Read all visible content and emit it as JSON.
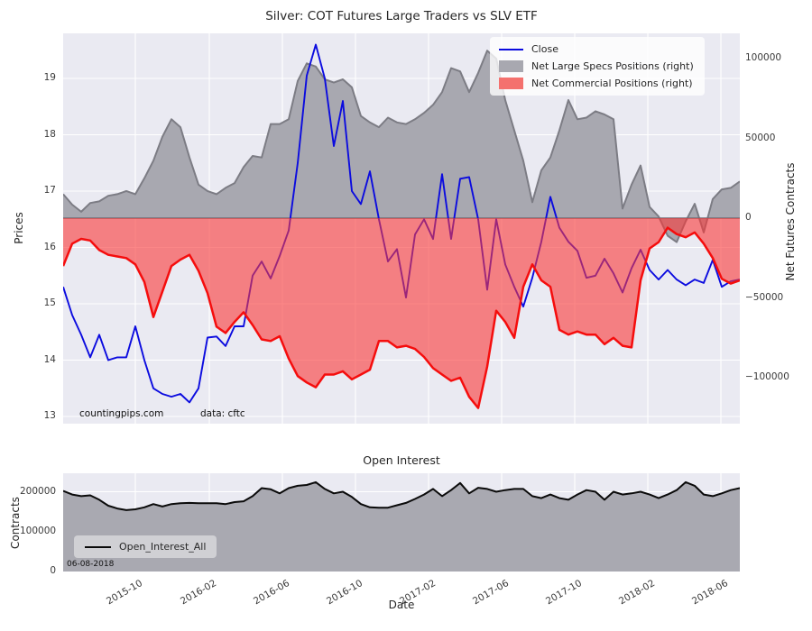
{
  "title": "Silver: COT Futures Large Traders vs SLV ETF",
  "chart_data": [
    {
      "type": "line+area",
      "title": "Silver: COT Futures Large Traders vs SLV ETF",
      "x_start": "2015-06",
      "x_end": "2018-06",
      "x_tick_labels": [
        "2015-10",
        "2016-02",
        "2016-06",
        "2016-10",
        "2017-02",
        "2017-06",
        "2017-10",
        "2018-02",
        "2018-06"
      ],
      "left_axis": {
        "label": "Prices",
        "tick_labels": [
          "19",
          "18",
          "17",
          "16",
          "15",
          "14",
          "13"
        ],
        "tick_values": [
          19,
          18,
          17,
          16,
          15,
          14,
          13
        ],
        "range": [
          12.9,
          19.8
        ]
      },
      "right_axis": {
        "label": "Net Futures Contracts",
        "tick_labels": [
          "100000",
          "50000",
          "0",
          "−50000",
          "−100000"
        ],
        "tick_values_thousands": [
          100,
          50,
          0,
          -50,
          -100
        ],
        "range_thousands": [
          -130,
          116
        ]
      },
      "grid": true,
      "legend_position": "upper right",
      "series": [
        {
          "name": "Close",
          "kind": "line",
          "axis": "left",
          "color": "#0b0bdf",
          "values": [
            15.3,
            14.8,
            14.45,
            14.05,
            14.45,
            14.0,
            14.05,
            14.05,
            14.6,
            14.0,
            13.5,
            13.4,
            13.35,
            13.4,
            13.25,
            13.5,
            14.4,
            14.42,
            14.25,
            14.6,
            14.6,
            15.5,
            15.75,
            15.45,
            15.85,
            16.3,
            17.5,
            19.05,
            19.6,
            19.0,
            17.8,
            18.6,
            17.0,
            16.77,
            17.35,
            16.5,
            15.75,
            15.97,
            15.11,
            16.23,
            16.5,
            16.15,
            17.3,
            16.15,
            17.22,
            17.25,
            16.5,
            15.25,
            16.5,
            15.7,
            15.3,
            14.95,
            15.46,
            16.1,
            16.9,
            16.35,
            16.1,
            15.94,
            15.46,
            15.5,
            15.8,
            15.54,
            15.2,
            15.63,
            15.96,
            15.6,
            15.43,
            15.6,
            15.43,
            15.33,
            15.43,
            15.37,
            15.78,
            15.3,
            15.4,
            15.43
          ]
        },
        {
          "name": "Net Large Specs Positions (right)",
          "kind": "area",
          "axis": "right",
          "fill": "#a8a8b0",
          "edge": "#7c7c84",
          "values_thousands": [
            15,
            8.5,
            4,
            9.5,
            10.5,
            14,
            15,
            17,
            15,
            25,
            36,
            51,
            62,
            57,
            38,
            21,
            17,
            15,
            19,
            22,
            32,
            39,
            38,
            59,
            59,
            62,
            86,
            97,
            95,
            87,
            85,
            87,
            82,
            64,
            60,
            57,
            63,
            60,
            59,
            62,
            66,
            71,
            79,
            94,
            92,
            79,
            91,
            105,
            100,
            74,
            55,
            36,
            10,
            30,
            38,
            55,
            74,
            62,
            63,
            67,
            65,
            62,
            6,
            21,
            33,
            7,
            1,
            -11,
            -15,
            -2,
            9,
            -9,
            12,
            18,
            19,
            23
          ]
        },
        {
          "name": "Net Commercial Positions (right)",
          "kind": "area",
          "axis": "right",
          "fill": "rgba(250,55,55,0.6)",
          "edge": "#f50d0d",
          "values_thousands": [
            -30,
            -16,
            -13,
            -14,
            -20,
            -23,
            -24,
            -25,
            -29,
            -40,
            -62,
            -46,
            -30,
            -26,
            -23,
            -33,
            -47,
            -68,
            -72,
            -65,
            -59,
            -67,
            -76,
            -77,
            -74,
            -88,
            -99,
            -103,
            -106,
            -98,
            -98,
            -96,
            -101,
            -98,
            -95,
            -77,
            -77,
            -81,
            -80,
            -82,
            -87,
            -94,
            -98,
            -102,
            -100,
            -112,
            -119,
            -93,
            -58,
            -65,
            -75,
            -43,
            -29,
            -39,
            -43,
            -70,
            -73,
            -71,
            -73,
            -73,
            -79,
            -75,
            -80,
            -81,
            -39,
            -19,
            -15,
            -6,
            -10,
            -12,
            -9,
            -16,
            -25,
            -38,
            -41,
            -39
          ]
        }
      ],
      "annotations": {
        "watermark": "countingpips.com",
        "source": "data: cftc"
      }
    },
    {
      "type": "area",
      "title": "Open Interest",
      "x_axis_label": "Date",
      "y_axis": {
        "label": "Contracts",
        "tick_labels": [
          "200000",
          "100000",
          "0"
        ],
        "tick_values_thousands": [
          200,
          100,
          0
        ]
      },
      "grid": true,
      "legend_position": "lower left",
      "series": [
        {
          "name": "Open_Interest_All",
          "kind": "area",
          "fill": "#a9a9b1",
          "edge": "#0a0a0a",
          "values_thousands": [
            202,
            193,
            189,
            191,
            180,
            165,
            158,
            154,
            156,
            161,
            169,
            163,
            169,
            171,
            172,
            171,
            171,
            171,
            169,
            174,
            176,
            189,
            209,
            206,
            196,
            209,
            215,
            217,
            224,
            207,
            196,
            200,
            187,
            169,
            161,
            160,
            160,
            166,
            172,
            182,
            193,
            207,
            189,
            204,
            222,
            196,
            210,
            207,
            200,
            204,
            207,
            207,
            189,
            184,
            193,
            184,
            180,
            193,
            204,
            200,
            180,
            200,
            193,
            196,
            200,
            193,
            184,
            193,
            204,
            224,
            215,
            193,
            189,
            196,
            204,
            209
          ]
        }
      ],
      "annotations": {
        "date_stamp": "06-08-2018"
      }
    }
  ],
  "colors": {
    "plot_bg": "#eaeaf2",
    "grid": "#ffffff",
    "zero_line": "#6e6e78",
    "figure_bg": "#ffffff"
  }
}
